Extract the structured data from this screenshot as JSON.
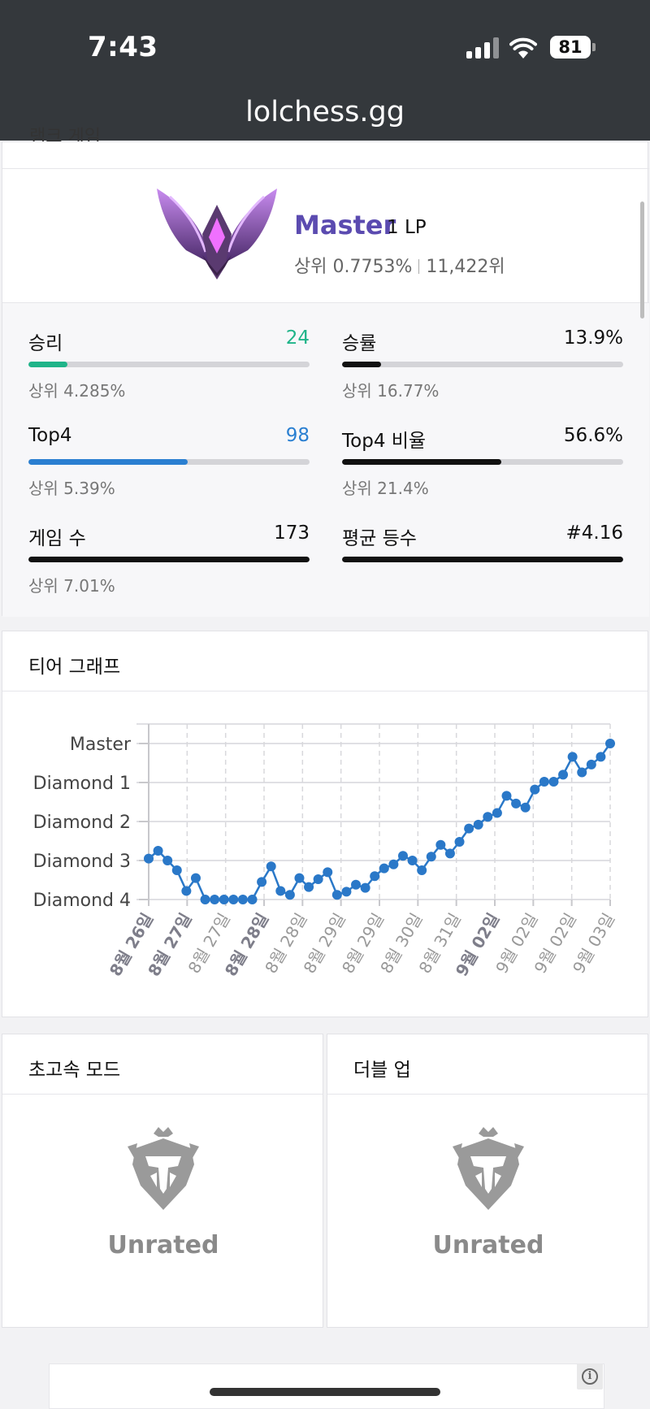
{
  "status_bar": {
    "time": "7:43",
    "battery": "81"
  },
  "browser": {
    "url": "lolchess.gg"
  },
  "ranked": {
    "cut_title": "랭크 게임",
    "tier": "Master",
    "lp": "1 LP",
    "top_percent": "상위 0.7753%",
    "rank": "11,422위",
    "stats": [
      {
        "label": "승리",
        "value": "24",
        "sub": "상위 4.285%",
        "fill": 0.14,
        "color": "#1fb489"
      },
      {
        "label": "승률",
        "value": "13.9%",
        "sub": "상위 16.77%",
        "fill": 0.139,
        "color": "#111111"
      },
      {
        "label": "Top4",
        "value": "98",
        "sub": "상위 5.39%",
        "fill": 0.566,
        "color": "#2a7fd1"
      },
      {
        "label": "Top4 비율",
        "value": "56.6%",
        "sub": "상위 21.4%",
        "fill": 0.566,
        "color": "#111111"
      },
      {
        "label": "게임 수",
        "value": "173",
        "sub": "상위 7.01%",
        "fill": 1.0,
        "color": "#111111"
      },
      {
        "label": "평균 등수",
        "value": "#4.16",
        "sub": "",
        "fill": 1.0,
        "color": "#111111"
      }
    ]
  },
  "tier_graph": {
    "title": "티어 그래프",
    "chart_data": {
      "type": "line",
      "y_tick_labels": [
        "Master",
        "Diamond 1",
        "Diamond 2",
        "Diamond 3",
        "Diamond 4"
      ],
      "x_tick_labels": [
        "8월 26일",
        "8월 27일",
        "8월 27일",
        "8월 28일",
        "8월 28일",
        "8월 29일",
        "8월 29일",
        "8월 30일",
        "8월 31일",
        "9월 02일",
        "9월 02일",
        "9월 02일",
        "9월 03일"
      ],
      "x_tick_bold": [
        true,
        true,
        false,
        true,
        false,
        false,
        false,
        false,
        false,
        true,
        false,
        false,
        false
      ],
      "ylim": [
        0,
        4.5
      ],
      "values": [
        1.05,
        1.25,
        1.0,
        0.75,
        0.22,
        0.55,
        0,
        0,
        0,
        0,
        0,
        0,
        0.45,
        0.85,
        0.22,
        0.12,
        0.55,
        0.32,
        0.52,
        0.7,
        0.12,
        0.2,
        0.38,
        0.3,
        0.6,
        0.8,
        0.9,
        1.12,
        1.0,
        0.75,
        1.1,
        1.4,
        1.18,
        1.48,
        1.82,
        1.92,
        2.12,
        2.22,
        2.66,
        2.46,
        2.36,
        2.82,
        3.02,
        3.02,
        3.2,
        3.66,
        3.26,
        3.46,
        3.66,
        4.0
      ],
      "grid": true
    }
  },
  "modes": [
    {
      "title": "초고속 모드",
      "status": "Unrated"
    },
    {
      "title": "더블 업",
      "status": "Unrated"
    }
  ]
}
